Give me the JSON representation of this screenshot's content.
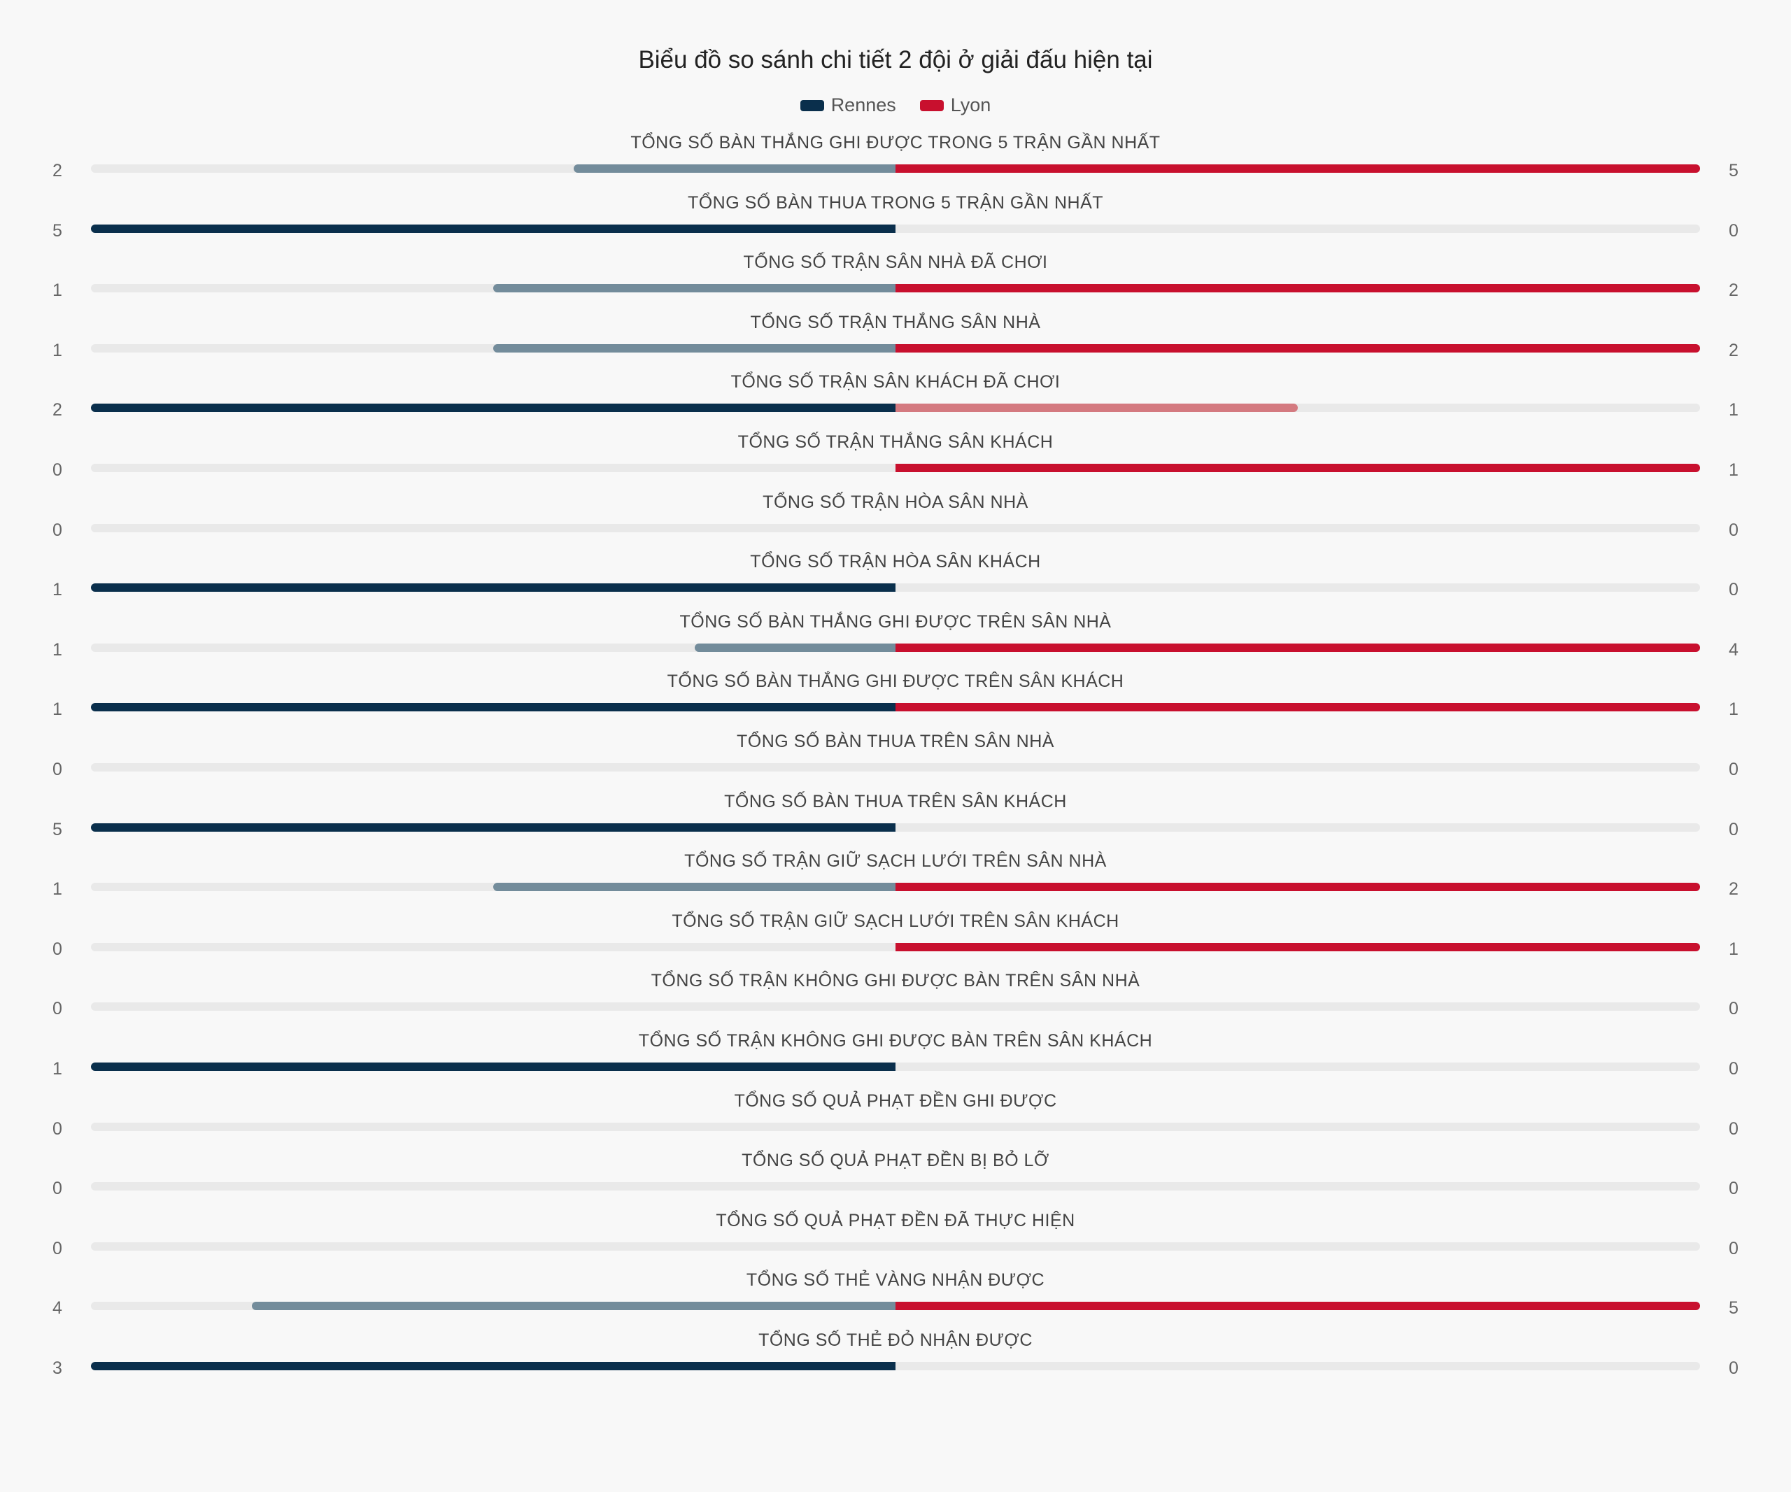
{
  "chart_data": {
    "type": "bar",
    "title": "Biểu đồ so sánh chi tiết 2 đội ở giải đấu hiện tại",
    "series": [
      {
        "name": "Rennes",
        "color": "#0a2f4c",
        "values": [
          2,
          5,
          1,
          1,
          2,
          0,
          0,
          1,
          1,
          1,
          0,
          5,
          1,
          0,
          0,
          1,
          0,
          0,
          0,
          4,
          3
        ]
      },
      {
        "name": "Lyon",
        "color": "#c8102e",
        "values": [
          5,
          0,
          2,
          2,
          1,
          1,
          0,
          0,
          4,
          1,
          0,
          0,
          2,
          1,
          0,
          0,
          0,
          0,
          0,
          5,
          0
        ]
      }
    ],
    "categories": [
      "TỔNG SỐ BÀN THẮNG GHI ĐƯỢC TRONG 5 TRẬN GẦN NHẤT",
      "TỔNG SỐ BÀN THUA TRONG 5 TRẬN GẦN NHẤT",
      "TỔNG SỐ TRẬN SÂN NHÀ ĐÃ CHƠI",
      "TỔNG SỐ TRẬN THẮNG SÂN NHÀ",
      "TỔNG SỐ TRẬN SÂN KHÁCH ĐÃ CHƠI",
      "TỔNG SỐ TRẬN THẮNG SÂN KHÁCH",
      "TỔNG SỐ TRẬN HÒA SÂN NHÀ",
      "TỔNG SỐ TRẬN HÒA SÂN KHÁCH",
      "TỔNG SỐ BÀN THẮNG GHI ĐƯỢC TRÊN SÂN NHÀ",
      "TỔNG SỐ BÀN THẮNG GHI ĐƯỢC TRÊN SÂN KHÁCH",
      "TỔNG SỐ BÀN THUA TRÊN SÂN NHÀ",
      "TỔNG SỐ BÀN THUA TRÊN SÂN KHÁCH",
      "TỔNG SỐ TRẬN GIỮ SẠCH LƯỚI TRÊN SÂN NHÀ",
      "TỔNG SỐ TRẬN GIỮ SẠCH LƯỚI TRÊN SÂN KHÁCH",
      "TỔNG SỐ TRẬN KHÔNG GHI ĐƯỢC BÀN TRÊN SÂN NHÀ",
      "TỔNG SỐ TRẬN KHÔNG GHI ĐƯỢC BÀN TRÊN SÂN KHÁCH",
      "TỔNG SỐ QUẢ PHẠT ĐỀN GHI ĐƯỢC",
      "TỔNG SỐ QUẢ PHẠT ĐỀN BỊ BỎ LỠ",
      "TỔNG SỐ QUẢ PHẠT ĐỀN ĐÃ THỰC HIỆN",
      "TỔNG SỐ THẺ VÀNG NHẬN ĐƯỢC",
      "TỔNG SỐ THẺ ĐỎ NHẬN ĐƯỢC"
    ],
    "legend_position": "top",
    "lighter_colors": {
      "Rennes": "#738c9b",
      "Lyon": "#d47a80"
    },
    "track_color": "#e9e9e9"
  }
}
